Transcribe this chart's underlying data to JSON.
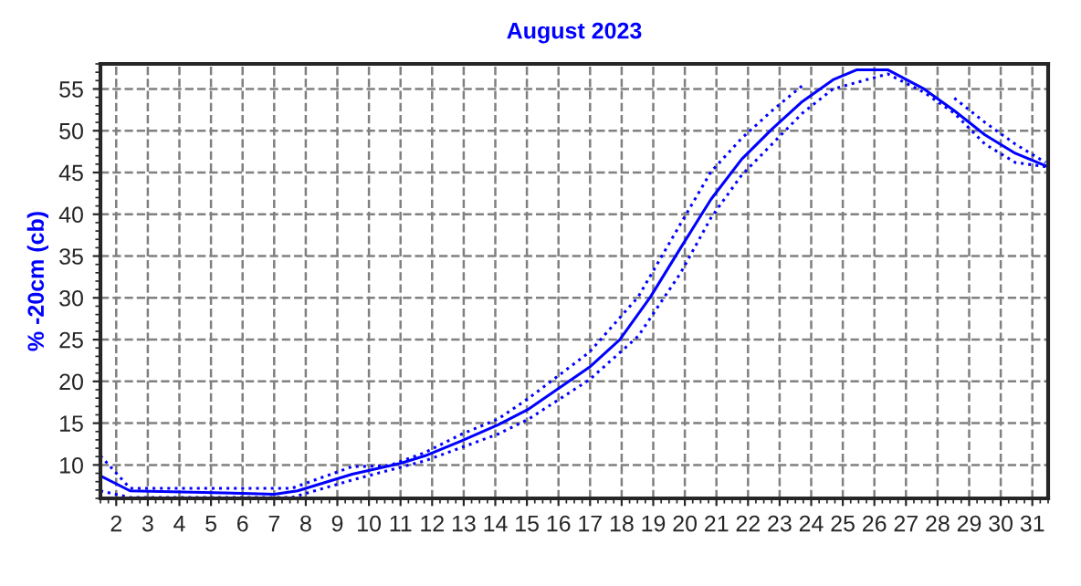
{
  "chart_data": {
    "type": "line",
    "title": "August 2023",
    "ylabel": "% -20cm (cb)",
    "xlim": [
      1.5,
      31.5
    ],
    "xticks": [
      2,
      3,
      4,
      5,
      6,
      7,
      8,
      9,
      10,
      11,
      12,
      13,
      14,
      15,
      16,
      17,
      18,
      19,
      20,
      21,
      22,
      23,
      24,
      25,
      26,
      27,
      28,
      29,
      30,
      31
    ],
    "ylim": [
      6,
      58
    ],
    "yticks": [
      10,
      15,
      20,
      25,
      30,
      35,
      40,
      45,
      50,
      55
    ],
    "grid": true,
    "legend": false,
    "series": [
      {
        "color": "#0000ff",
        "line_style": "solid",
        "x": [
          1.5,
          2.44,
          6.0,
          7.0,
          7.74,
          9.47,
          11.01,
          11.78,
          12.94,
          14.09,
          15.06,
          16.98,
          17.94,
          18.91,
          19.87,
          20.83,
          21.8,
          22.76,
          23.72,
          24.69,
          25.45,
          26.42,
          27.57,
          28.53,
          29.5,
          30.46,
          31.42
        ],
        "values": [
          8.7,
          6.9,
          6.6,
          6.5,
          6.9,
          8.9,
          10.2,
          11.1,
          12.9,
          14.8,
          16.7,
          21.7,
          25.0,
          30.1,
          36.0,
          41.8,
          46.6,
          50.2,
          53.5,
          56.1,
          57.3,
          57.3,
          55.0,
          52.4,
          49.5,
          47.3,
          45.8
        ]
      },
      {
        "color": "#0000ff",
        "line_style": "dotted",
        "x": [
          1.5,
          2.44,
          7.55,
          9.47,
          10.63,
          11.78,
          12.94,
          14.09,
          15.06,
          16.98,
          18.52,
          19.87,
          20.83,
          21.8,
          22.76,
          23.72,
          24.49,
          27.48,
          28.53,
          29.5,
          30.46,
          31.42
        ],
        "values": [
          11.1,
          7.2,
          7.2,
          9.8,
          9.9,
          11.5,
          13.7,
          15.5,
          18.0,
          23.5,
          30.1,
          38.9,
          45.1,
          49.1,
          52.4,
          55.4,
          null,
          null,
          53.9,
          51.0,
          48.4,
          46.2
        ]
      },
      {
        "color": "#0000ff",
        "line_style": "dotted",
        "x": [
          1.5,
          2.44,
          7.55,
          9.47,
          11.78,
          14.09,
          15.06,
          16.98,
          18.52,
          19.87,
          20.83,
          21.8,
          22.76,
          23.72,
          24.69,
          26.42,
          27.57,
          28.53,
          29.5,
          30.46,
          31.42
        ],
        "values": [
          6.9,
          6.1,
          6.1,
          8.2,
          10.5,
          13.7,
          15.5,
          20.2,
          25.4,
          33.0,
          39.6,
          44.7,
          48.4,
          52.1,
          55.0,
          56.8,
          54.6,
          52.1,
          48.4,
          46.2,
          45.7
        ]
      }
    ]
  }
}
